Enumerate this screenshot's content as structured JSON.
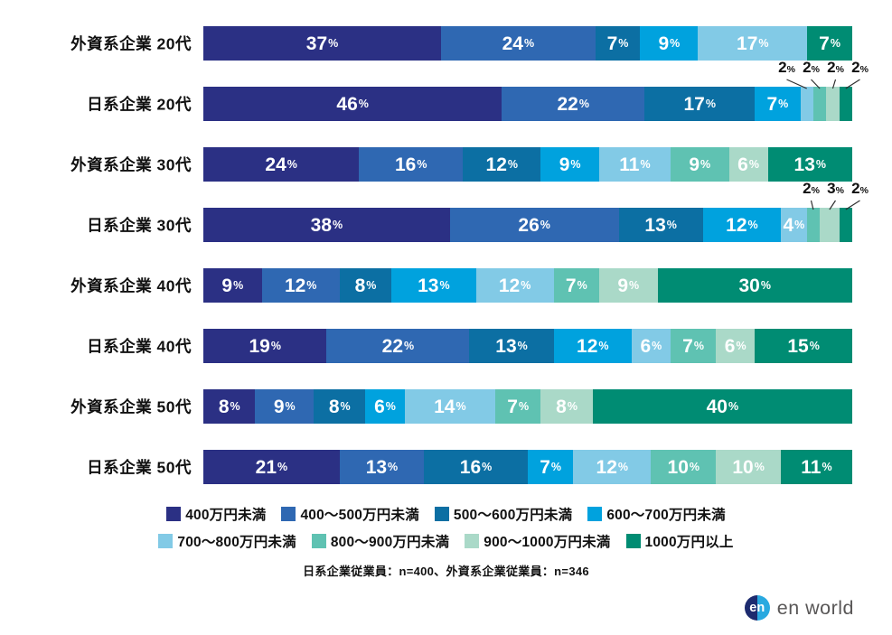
{
  "chart_data": {
    "type": "bar",
    "stacked": true,
    "orientation": "horizontal",
    "unit": "%",
    "grid": false,
    "legend_position": "bottom",
    "series": [
      {
        "name": "400万円未満",
        "color": "#2B3084"
      },
      {
        "name": "400〜500万円未満",
        "color": "#2F68B2"
      },
      {
        "name": "500〜600万円未満",
        "color": "#0C6FA3"
      },
      {
        "name": "600〜700万円未満",
        "color": "#00A2DE"
      },
      {
        "name": "700〜800万円未満",
        "color": "#82CAE6"
      },
      {
        "name": "800〜900万円未満",
        "color": "#5FC2B2"
      },
      {
        "name": "900〜1000万円未満",
        "color": "#AAD9C8"
      },
      {
        "name": "1000万円以上",
        "color": "#008C73"
      }
    ],
    "categories": [
      "外資系企業 20代",
      "日系企業 20代",
      "外資系企業 30代",
      "日系企業 30代",
      "外資系企業 40代",
      "日系企業 40代",
      "外資系企業 50代",
      "日系企業 50代"
    ],
    "rows": [
      {
        "label": "外資系企業 20代",
        "values": [
          37,
          24,
          7,
          9,
          17,
          0,
          0,
          7
        ],
        "callouts": []
      },
      {
        "label": "日系企業 20代",
        "values": [
          46,
          22,
          17,
          7,
          2,
          2,
          2,
          2
        ],
        "callouts": [
          4,
          5,
          6,
          7
        ]
      },
      {
        "label": "外資系企業 30代",
        "values": [
          24,
          16,
          12,
          9,
          11,
          9,
          6,
          13
        ],
        "callouts": []
      },
      {
        "label": "日系企業 30代",
        "values": [
          38,
          26,
          13,
          12,
          4,
          2,
          3,
          2
        ],
        "callouts": [
          5,
          6,
          7
        ]
      },
      {
        "label": "外資系企業 40代",
        "values": [
          9,
          12,
          8,
          13,
          12,
          7,
          9,
          30
        ],
        "callouts": []
      },
      {
        "label": "日系企業 40代",
        "values": [
          19,
          22,
          13,
          12,
          6,
          7,
          6,
          15
        ],
        "callouts": []
      },
      {
        "label": "外資系企業 50代",
        "values": [
          8,
          9,
          8,
          6,
          14,
          7,
          8,
          40
        ],
        "callouts": []
      },
      {
        "label": "日系企業 50代",
        "values": [
          21,
          13,
          16,
          7,
          12,
          10,
          10,
          11
        ],
        "callouts": []
      }
    ],
    "legend_rows": [
      [
        0,
        1,
        2,
        3
      ],
      [
        4,
        5,
        6,
        7
      ]
    ],
    "footnote": "日系企業従業員：n=400、外資系企業従業員：n=346"
  },
  "logo": {
    "icon_text": "en",
    "brand_text": "en world"
  }
}
